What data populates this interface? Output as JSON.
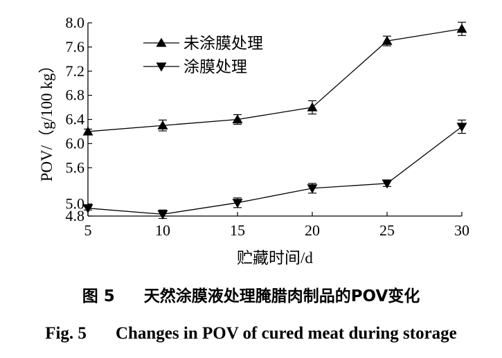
{
  "chart_data": {
    "type": "line",
    "xlabel": "贮藏时间/d",
    "ylabel": "POV/（g/100 kg）",
    "x": [
      5,
      10,
      15,
      20,
      25,
      30
    ],
    "xlim": [
      5,
      30
    ],
    "ylim": [
      4.8,
      8.0
    ],
    "x_ticks": [
      5,
      10,
      15,
      20,
      25,
      30
    ],
    "y_ticks": [
      4.8,
      5.0,
      5.6,
      6.0,
      6.4,
      6.8,
      7.2,
      7.6,
      8.0
    ],
    "y_tick_labels": [
      "4.8",
      "5.0",
      "5.6",
      "6.0",
      "6.4",
      "6.8",
      "7.2",
      "7.6",
      "8.0"
    ],
    "legend_position": "top-left",
    "series": [
      {
        "name": "未涂膜处理",
        "marker": "triangle-up",
        "values": [
          6.2,
          6.3,
          6.4,
          6.6,
          7.7,
          7.9
        ],
        "errors": [
          0.04,
          0.09,
          0.08,
          0.11,
          0.08,
          0.11
        ]
      },
      {
        "name": "涂膜处理",
        "marker": "triangle-down",
        "values": [
          4.93,
          4.83,
          5.02,
          5.26,
          5.34,
          6.28
        ],
        "errors": [
          0.03,
          0.07,
          0.08,
          0.08,
          0.05,
          0.11
        ]
      }
    ],
    "grid": false,
    "color": "#000000"
  },
  "caption": {
    "cn_label": "图 5",
    "cn_text": "天然涂膜液处理腌腊肉制品的POV变化",
    "en_label": "Fig. 5",
    "en_text": "Changes in POV of cured meat during storage"
  }
}
